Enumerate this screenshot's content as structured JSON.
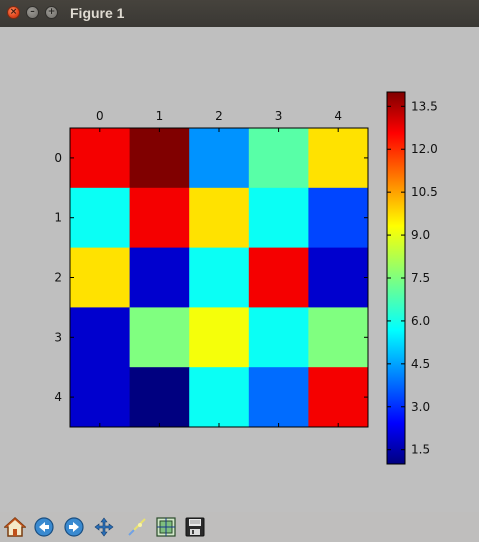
{
  "window": {
    "title": "Figure 1"
  },
  "toolbar": {
    "buttons": [
      {
        "name": "home-button",
        "icon": "home-icon"
      },
      {
        "name": "back-button",
        "icon": "back-arrow-icon"
      },
      {
        "name": "forward-button",
        "icon": "forward-arrow-icon"
      },
      {
        "name": "pan-button",
        "icon": "pan-move-icon"
      },
      {
        "name": "zoom-button",
        "icon": "zoom-rect-icon"
      },
      {
        "name": "configure-subplots-button",
        "icon": "subplots-icon"
      },
      {
        "name": "save-button",
        "icon": "save-disk-icon"
      }
    ]
  },
  "chart_data": {
    "type": "heatmap",
    "colormap": "jet",
    "x_ticks": [
      "0",
      "1",
      "2",
      "3",
      "4"
    ],
    "y_ticks": [
      "0",
      "1",
      "2",
      "3",
      "4"
    ],
    "x_tick_position": "top",
    "grid": false,
    "values": [
      [
        12.5,
        14.0,
        4.5,
        7.0,
        9.5
      ],
      [
        6.0,
        12.5,
        9.5,
        6.0,
        3.5
      ],
      [
        9.5,
        2.0,
        6.0,
        12.5,
        2.0
      ],
      [
        2.0,
        7.5,
        9.0,
        6.0,
        7.5
      ],
      [
        2.0,
        1.0,
        6.0,
        4.0,
        12.5
      ]
    ],
    "colorbar": {
      "range": [
        1.0,
        14.0
      ],
      "ticks": [
        "1.5",
        "3.0",
        "4.5",
        "6.0",
        "7.5",
        "9.0",
        "10.5",
        "12.0",
        "13.5"
      ],
      "tick_values": [
        1.5,
        3.0,
        4.5,
        6.0,
        7.5,
        9.0,
        10.5,
        12.0,
        13.5
      ]
    }
  }
}
